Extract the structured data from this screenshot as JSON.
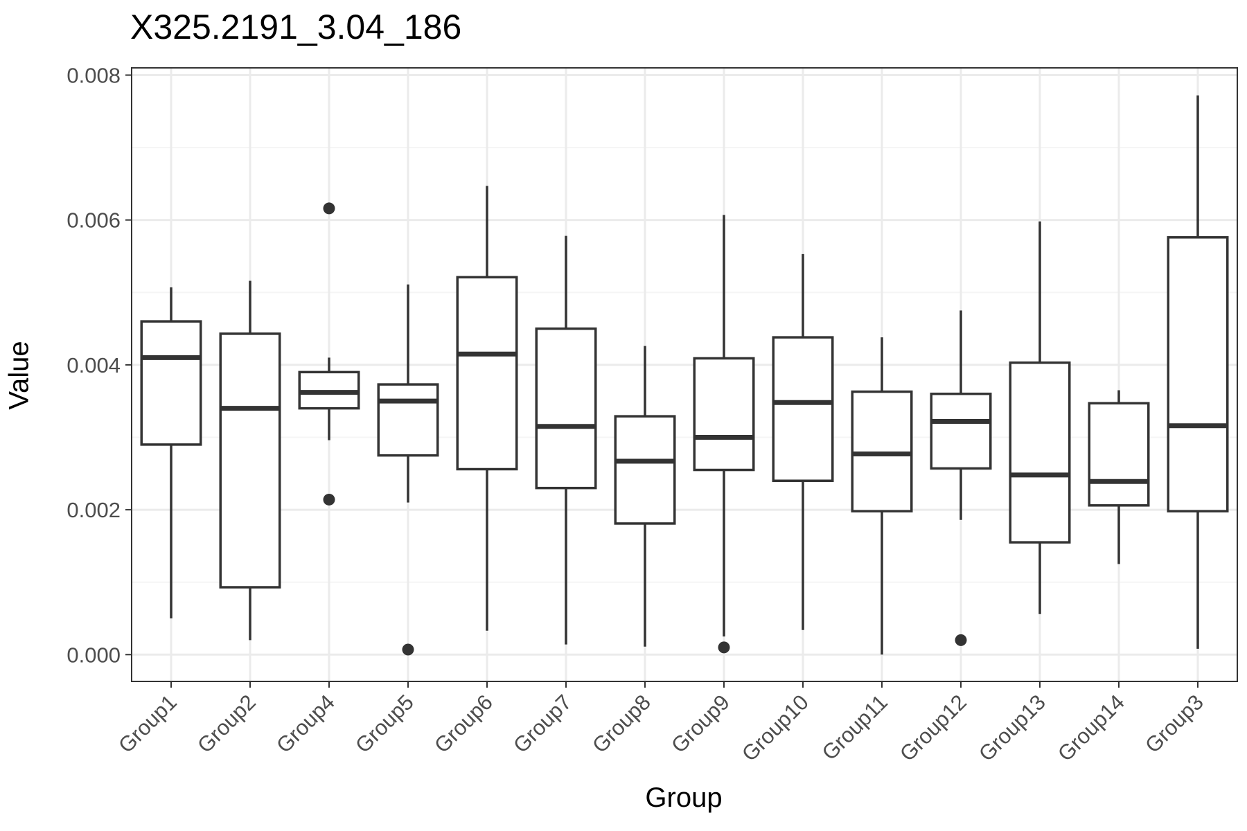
{
  "chart_data": {
    "type": "boxplot",
    "title": "X325.2191_3.04_186",
    "xlabel": "Group",
    "ylabel": "Value",
    "ylim": [
      -0.00037,
      0.0081
    ],
    "yticks": [
      0.0,
      0.002,
      0.004,
      0.006,
      0.008
    ],
    "ytick_labels": [
      "0.000",
      "0.002",
      "0.004",
      "0.006",
      "0.008"
    ],
    "grid": true,
    "categories": [
      "Group1",
      "Group2",
      "Group4",
      "Group5",
      "Group6",
      "Group7",
      "Group8",
      "Group9",
      "Group10",
      "Group11",
      "Group12",
      "Group13",
      "Group14",
      "Group3"
    ],
    "boxes": [
      {
        "group": "Group1",
        "whisker_low": 0.0005,
        "q1": 0.0029,
        "median": 0.0041,
        "q3": 0.0046,
        "whisker_high": 0.00507,
        "outliers": []
      },
      {
        "group": "Group2",
        "whisker_low": 0.0002,
        "q1": 0.00093,
        "median": 0.0034,
        "q3": 0.00443,
        "whisker_high": 0.00516,
        "outliers": []
      },
      {
        "group": "Group4",
        "whisker_low": 0.00296,
        "q1": 0.0034,
        "median": 0.00362,
        "q3": 0.0039,
        "whisker_high": 0.0041,
        "outliers": [
          0.00616,
          0.00214
        ]
      },
      {
        "group": "Group5",
        "whisker_low": 0.0021,
        "q1": 0.00275,
        "median": 0.0035,
        "q3": 0.00373,
        "whisker_high": 0.00511,
        "outliers": [
          7e-05
        ]
      },
      {
        "group": "Group6",
        "whisker_low": 0.00033,
        "q1": 0.00256,
        "median": 0.00415,
        "q3": 0.00521,
        "whisker_high": 0.00647,
        "outliers": []
      },
      {
        "group": "Group7",
        "whisker_low": 0.00014,
        "q1": 0.0023,
        "median": 0.00315,
        "q3": 0.0045,
        "whisker_high": 0.00578,
        "outliers": []
      },
      {
        "group": "Group8",
        "whisker_low": 0.00011,
        "q1": 0.00181,
        "median": 0.00267,
        "q3": 0.00329,
        "whisker_high": 0.00426,
        "outliers": []
      },
      {
        "group": "Group9",
        "whisker_low": 0.00025,
        "q1": 0.00255,
        "median": 0.003,
        "q3": 0.00409,
        "whisker_high": 0.00607,
        "outliers": [
          0.0001
        ]
      },
      {
        "group": "Group10",
        "whisker_low": 0.00034,
        "q1": 0.0024,
        "median": 0.00348,
        "q3": 0.00438,
        "whisker_high": 0.00553,
        "outliers": []
      },
      {
        "group": "Group11",
        "whisker_low": 0.0,
        "q1": 0.00198,
        "median": 0.00277,
        "q3": 0.00363,
        "whisker_high": 0.00438,
        "outliers": []
      },
      {
        "group": "Group12",
        "whisker_low": 0.00186,
        "q1": 0.00257,
        "median": 0.00322,
        "q3": 0.0036,
        "whisker_high": 0.00475,
        "outliers": [
          0.0002
        ]
      },
      {
        "group": "Group13",
        "whisker_low": 0.00056,
        "q1": 0.00155,
        "median": 0.00248,
        "q3": 0.00403,
        "whisker_high": 0.00598,
        "outliers": []
      },
      {
        "group": "Group14",
        "whisker_low": 0.00125,
        "q1": 0.00206,
        "median": 0.00239,
        "q3": 0.00347,
        "whisker_high": 0.00365,
        "outliers": []
      },
      {
        "group": "Group3",
        "whisker_low": 8e-05,
        "q1": 0.00198,
        "median": 0.00316,
        "q3": 0.00576,
        "whisker_high": 0.00772,
        "outliers": []
      }
    ],
    "colors": {
      "box_stroke": "#333333",
      "box_fill": "#ffffff",
      "grid_major": "#ebebeb",
      "grid_minor": "#f5f5f5",
      "panel_border": "#333333",
      "tick_text": "#4d4d4d"
    }
  }
}
